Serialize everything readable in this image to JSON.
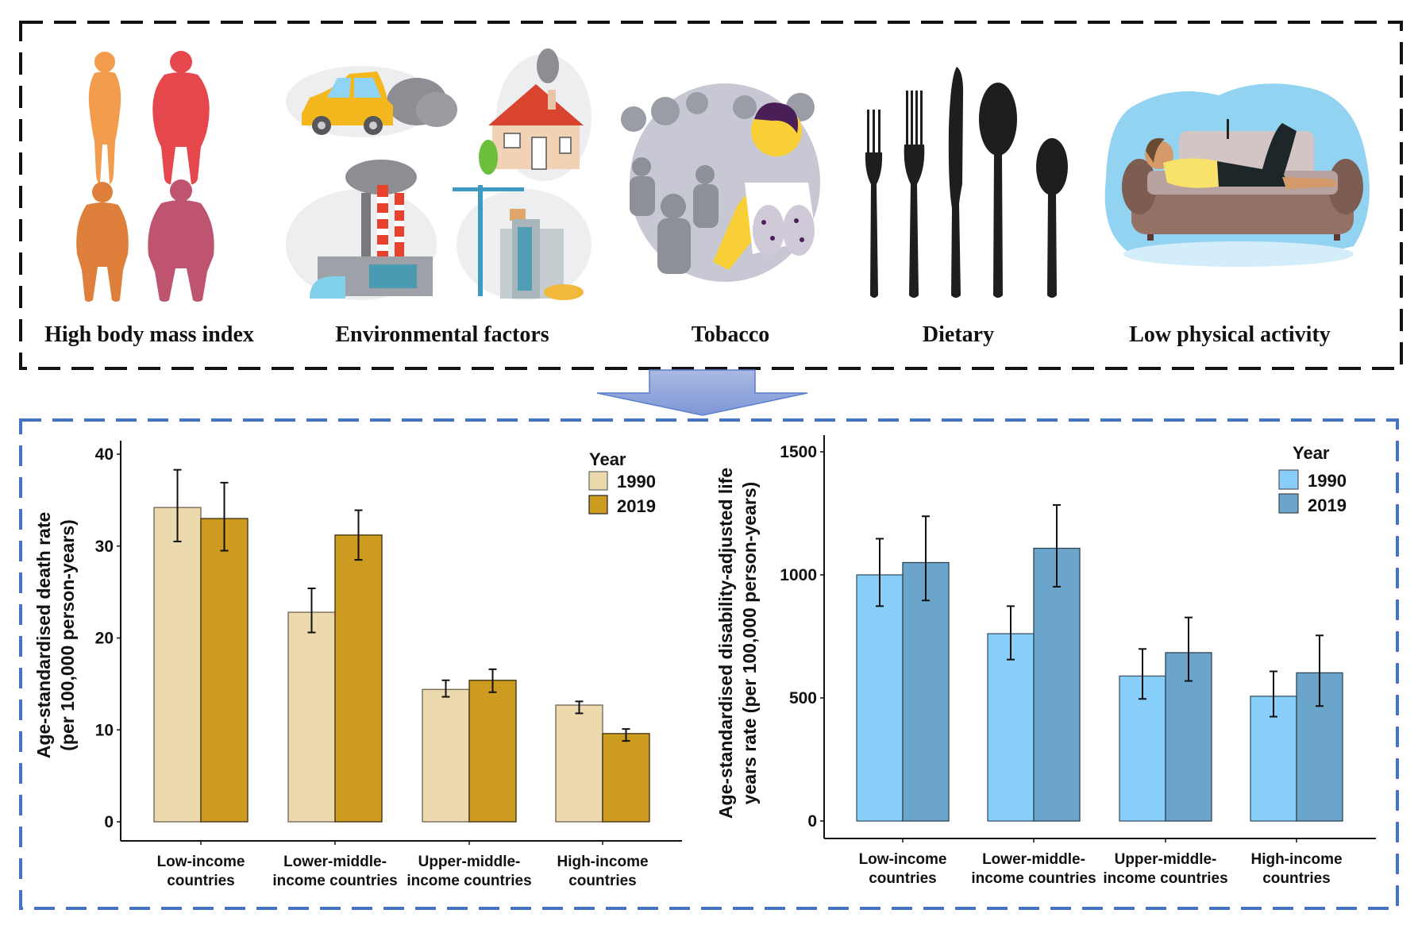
{
  "risk_factors": {
    "items": [
      {
        "label": "High body mass index",
        "icon": "body-silhouettes-icon"
      },
      {
        "label": "Environmental factors",
        "icon": "pollution-scenes-icon"
      },
      {
        "label": "Tobacco",
        "icon": "smoker-lungs-icon"
      },
      {
        "label": "Dietary",
        "icon": "cutlery-icon"
      },
      {
        "label": "Low physical activity",
        "icon": "person-on-sofa-icon"
      }
    ]
  },
  "flow_arrow": {
    "icon": "down-arrow-icon",
    "color": "#8FA7DC"
  },
  "colors": {
    "top_box_border": "#111111",
    "bottom_box_border": "#4472C4",
    "death_1990": "#EDD9AE",
    "death_2019": "#CC9B1F",
    "daly_1990": "#87CEFA",
    "daly_2019": "#6CA5CB"
  },
  "chart_data": [
    {
      "type": "bar",
      "title": "",
      "xlabel": "",
      "ylabel": "Age-standardised death rate (per 100,000 person-years)",
      "ylabel_lines": [
        "Age-standardised death rate",
        "(per 100,000 person-years)"
      ],
      "ylim": [
        0,
        40
      ],
      "yticks": [
        0,
        10,
        20,
        30,
        40
      ],
      "grid": false,
      "categories": [
        "Low-income countries",
        "Lower-middle-income countries",
        "Upper-middle-income countries",
        "High-income countries"
      ],
      "category_lines": [
        [
          "Low-income",
          "countries"
        ],
        [
          "Lower-middle-",
          "income countries"
        ],
        [
          "Upper-middle-",
          "income countries"
        ],
        [
          "High-income",
          "countries"
        ]
      ],
      "legend": {
        "title": "Year",
        "position": "top-right"
      },
      "series": [
        {
          "name": "1990",
          "color": "#EDD9AE",
          "values": [
            34.2,
            22.8,
            14.4,
            12.7
          ],
          "lower": [
            30.5,
            20.6,
            13.6,
            11.8
          ],
          "upper": [
            38.3,
            25.4,
            15.4,
            13.1
          ]
        },
        {
          "name": "2019",
          "color": "#CC9B1F",
          "values": [
            33.0,
            31.2,
            15.4,
            9.6
          ],
          "lower": [
            29.5,
            28.5,
            14.1,
            8.8
          ],
          "upper": [
            36.9,
            33.9,
            16.6,
            10.1
          ]
        }
      ]
    },
    {
      "type": "bar",
      "title": "",
      "xlabel": "",
      "ylabel": "Age-standardised disability-adjusted life years rate (per 100,000 person-years)",
      "ylabel_lines": [
        "Age-standardised disability-adjusted life",
        "years rate (per 100,000 person-years)"
      ],
      "ylim": [
        0,
        1500
      ],
      "yticks": [
        0,
        500,
        1000,
        1500
      ],
      "grid": false,
      "categories": [
        "Low-income countries",
        "Lower-middle-income countries",
        "Upper-middle-income countries",
        "High-income countries"
      ],
      "category_lines": [
        [
          "Low-income",
          "countries"
        ],
        [
          "Lower-middle-",
          "income countries"
        ],
        [
          "Upper-middle-",
          "income countries"
        ],
        [
          "High-income",
          "countries"
        ]
      ],
      "legend": {
        "title": "Year",
        "position": "top-right"
      },
      "series": [
        {
          "name": "1990",
          "color": "#87CEFA",
          "values": [
            1000,
            761,
            589,
            507
          ],
          "lower": [
            873,
            656,
            496,
            424
          ],
          "upper": [
            1147,
            873,
            699,
            608
          ]
        },
        {
          "name": "2019",
          "color": "#6CA5CB",
          "values": [
            1050,
            1108,
            684,
            602
          ],
          "lower": [
            896,
            952,
            569,
            467
          ],
          "upper": [
            1238,
            1284,
            827,
            754
          ]
        }
      ]
    }
  ]
}
